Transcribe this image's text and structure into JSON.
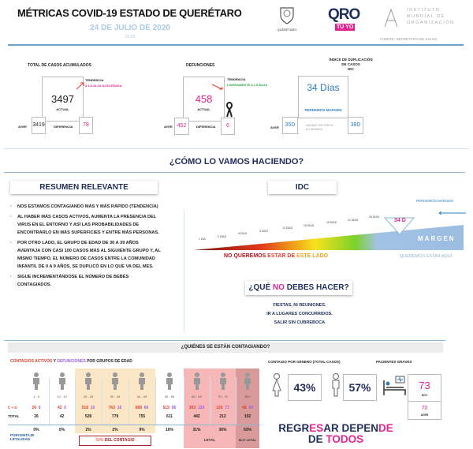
{
  "header": {
    "title": "MÉTRICAS COVID-19 ESTADO DE QUERÉTARO",
    "date": "24 DE JULIO DE 2020",
    "time": "21:00",
    "logo_queretaro": "QUERÉTARO",
    "logo_qro": "QRO",
    "logo_tuyo": "TÚ YO",
    "institute": [
      "INSTITUTO",
      "MUNDIAL DE",
      "ORGANIZACIÓN"
    ],
    "source": "FUENTE: SECRETARÍA DE SALUD."
  },
  "cases": {
    "label": "TOTAL DE CASOS ACUMULADOS",
    "actual": "3497",
    "actual_label": "ACTUAL",
    "trend_label": "TENDENCIA",
    "trend": "A LA ALZA ACELERADA",
    "ayer_label": "AYER",
    "ayer": "3419",
    "diff_label": "DIFERENCIA",
    "diff": "78"
  },
  "deaths": {
    "label": "DEFUNCIONES",
    "actual": "458",
    "actual_label": "ACTUAL",
    "trend_label": "TENDENCIA",
    "trend": "LIGERAMENTE A LA BAJA",
    "ayer_label": "AYER",
    "ayer": "452",
    "diff_label": "DIFERENCIA",
    "diff": "6"
  },
  "idc": {
    "label": [
      "ÍNDICE DE DUPLICACIÓN",
      "DE CASOS",
      "IDC"
    ],
    "value": "34 Días",
    "status": "PERDEMOS MARGEN",
    "ayer_label": "AYER",
    "ayer": "35D",
    "max_label": [
      "MÁXIMO HISTÓRICO",
      "ALCANZADO"
    ],
    "max": "38D"
  },
  "section_title": "¿CÓMO LO VAMOS HACIENDO?",
  "summary": {
    "title": "RESUMEN RELEVANTE",
    "bullets": [
      "NOS ESTAMOS CONTAGIANDO MÁS Y MÁS RÁPIDO (TENDENCIA)",
      "AL HABER MÁS CASOS ACTIVOS,  AUMENTA LA PRESENCIA DEL VIRUS EN EL ENTORNO Y ASÍ LAS PROBABILIDADES DE ENCONTRARLO EN MÁS SUPERFICIES Y ENTRE MÁS PERSONAS.",
      "POR OTRO LADO, EL GRUPO DE EDAD DE 30 A 39 AÑOS AVENTAJA CON CASI 100 CASOS MÁS AL SIGUIENTE GRUPO Y, AL MISMO TIEMPO, EL NÚMERO DE CASOS ENTRE LA COMUNIDAD INFANTIL DE 0 A 9 AÑOS, SE DUPLICÓ EN LO QUE VA DEL MES.",
      "SIGUE INCREMENTÁNDOSE EL NÚMERO DE BEBÉS CONTAGIADOS."
    ]
  },
  "idc_scale": {
    "title": "IDC",
    "lose": "PERDEMOS MARGEN",
    "current": "34 D",
    "margin": "MARGEN",
    "ticks": [
      "1 DÍA",
      "3 DÍAS",
      "6 DÍAS",
      "9 DÍAS",
      "12 DÍAS",
      "15 DÍAS",
      "18 DÍAS",
      "21 DÍAS",
      "25 DÍAS"
    ],
    "bad_a": "NO QUEREMOS ",
    "bad_b": "ESTAR DE ",
    "bad_c": "ESTE LADO",
    "good": "QUEREMOS ESTAR AQUÍ"
  },
  "dont": {
    "title_a": "¿QUÉ ",
    "title_no": "NO",
    "title_b": " DEBES HACER?",
    "items": [
      "FIESTAS, NI REUNIONES.",
      "IR A LUGARES CONCURRIDOS.",
      "SALIR SIN CUBREBOCA"
    ]
  },
  "who": {
    "title": "¿QUIÉNES SE ESTÁN CONTAGIANDO?",
    "subtitle_a": "CONTAGIOS ACTIVOS",
    "subtitle_y": " Y ",
    "subtitle_b": "DEFUNCIONES",
    "subtitle_c": " POR GRUPOS DE EDAD",
    "cd_label": "C + D",
    "total_label": "TOTAL",
    "pct_label": [
      "PORCENTAJE",
      "LETALIDAD"
    ],
    "groups": [
      {
        "age": "1 - 9",
        "c": "26",
        "d": "0",
        "total": "26",
        "pct": "0%"
      },
      {
        "age": "10 - 19",
        "c": "42",
        "d": "0",
        "total": "42",
        "pct": "0%"
      },
      {
        "age": "20 - 29",
        "c": "518",
        "d": "10",
        "total": "528",
        "pct": "2%"
      },
      {
        "age": "30 - 39",
        "c": "763",
        "d": "16",
        "total": "779",
        "pct": "2%"
      },
      {
        "age": "40 - 49",
        "c": "689",
        "d": "66",
        "total": "755",
        "pct": "9%"
      },
      {
        "age": "50 - 59",
        "c": "515",
        "d": "96",
        "total": "611",
        "pct": "16%"
      },
      {
        "age": "60 - 69",
        "c": "303",
        "d": "139",
        "total": "442",
        "pct": "31%"
      },
      {
        "age": "70 - 79",
        "c": "135",
        "d": "77",
        "total": "212",
        "pct": "36%"
      },
      {
        "age": "80+",
        "c": "48",
        "d": "54",
        "total": "102",
        "pct": "53%"
      }
    ],
    "contagio_pct": "59%",
    "contagio_label": "DEL CONTAGIO",
    "letal": "LETAL",
    "muy_letal": "MUY LETAL"
  },
  "gender": {
    "label": "CONTAGIO POR GÉNERO (TOTAL CASOS)",
    "female": "43%",
    "male": "57%"
  },
  "severe": {
    "label": "PACIENTES GRAVES",
    "today": "73",
    "today_label": "HOY",
    "yesterday": "70",
    "yesterday_label": "AYER"
  },
  "slogan": {
    "p1": "REGR",
    "p2": "ES",
    "p3": "AR DEPEN",
    "p4": "DE",
    "p5": "DE ",
    "p6": "TODOS"
  },
  "colors": {
    "navy": "#1f2e5a",
    "magenta": "#e5248f",
    "blue": "#2d7fc0",
    "red": "#e0402f",
    "purple": "#9b5de5"
  }
}
